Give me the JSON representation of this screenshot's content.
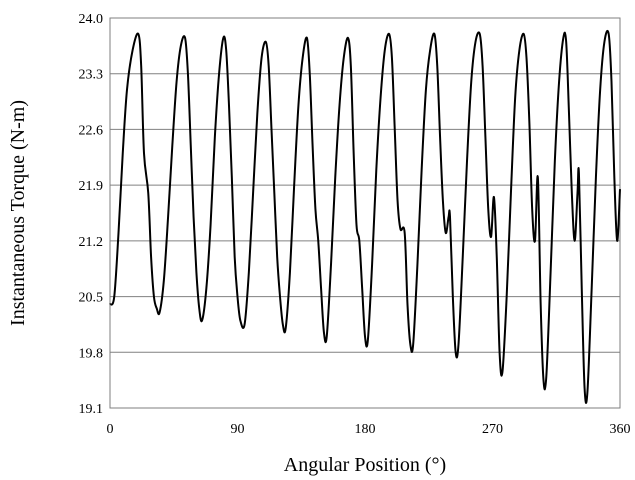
{
  "chart_data": {
    "type": "line",
    "title": "",
    "xlabel": "Angular Position (°)",
    "ylabel": "Instantaneous Torque (N-m)",
    "xlim": [
      0,
      360
    ],
    "ylim": [
      19.1,
      24.0
    ],
    "xticks": [
      0,
      90,
      180,
      270,
      360
    ],
    "yticks": [
      "19.1",
      "19.8",
      "20.5",
      "21.2",
      "21.9",
      "22.6",
      "23.3",
      "24.0"
    ],
    "grid": "horizontal",
    "legend": "none",
    "series": [
      {
        "color": "#000000",
        "points": [
          [
            0,
            20.4
          ],
          [
            3,
            20.5
          ],
          [
            6,
            21.3
          ],
          [
            9,
            22.3
          ],
          [
            12,
            23.1
          ],
          [
            16,
            23.6
          ],
          [
            20,
            23.8
          ],
          [
            22,
            23.4
          ],
          [
            24,
            22.3
          ],
          [
            27,
            21.8
          ],
          [
            29,
            21.0
          ],
          [
            31,
            20.5
          ],
          [
            33,
            20.35
          ],
          [
            35,
            20.3
          ],
          [
            38,
            20.7
          ],
          [
            41,
            21.5
          ],
          [
            44,
            22.4
          ],
          [
            47,
            23.2
          ],
          [
            50,
            23.65
          ],
          [
            53,
            23.75
          ],
          [
            55,
            23.3
          ],
          [
            57,
            22.4
          ],
          [
            59,
            21.5
          ],
          [
            61,
            20.8
          ],
          [
            63,
            20.35
          ],
          [
            65,
            20.2
          ],
          [
            68,
            20.6
          ],
          [
            71,
            21.4
          ],
          [
            74,
            22.5
          ],
          [
            77,
            23.3
          ],
          [
            80,
            23.75
          ],
          [
            82,
            23.6
          ],
          [
            84,
            22.9
          ],
          [
            86,
            22.0
          ],
          [
            88,
            21.0
          ],
          [
            90,
            20.5
          ],
          [
            92,
            20.2
          ],
          [
            95,
            20.15
          ],
          [
            98,
            20.8
          ],
          [
            101,
            21.8
          ],
          [
            104,
            22.8
          ],
          [
            107,
            23.5
          ],
          [
            110,
            23.7
          ],
          [
            112,
            23.4
          ],
          [
            114,
            22.6
          ],
          [
            116,
            21.8
          ],
          [
            118,
            21.0
          ],
          [
            120,
            20.5
          ],
          [
            122,
            20.15
          ],
          [
            124,
            20.1
          ],
          [
            127,
            20.8
          ],
          [
            130,
            21.9
          ],
          [
            133,
            22.9
          ],
          [
            136,
            23.5
          ],
          [
            139,
            23.75
          ],
          [
            141,
            23.3
          ],
          [
            143,
            22.4
          ],
          [
            145,
            21.6
          ],
          [
            147,
            21.2
          ],
          [
            149,
            20.6
          ],
          [
            151,
            20.05
          ],
          [
            153,
            20.0
          ],
          [
            156,
            20.9
          ],
          [
            159,
            22.0
          ],
          [
            162,
            22.9
          ],
          [
            165,
            23.5
          ],
          [
            168,
            23.75
          ],
          [
            170,
            23.4
          ],
          [
            172,
            22.3
          ],
          [
            174,
            21.4
          ],
          [
            176,
            21.2
          ],
          [
            178,
            20.6
          ],
          [
            180,
            20.0
          ],
          [
            182,
            19.95
          ],
          [
            185,
            20.9
          ],
          [
            188,
            22.1
          ],
          [
            191,
            23.0
          ],
          [
            194,
            23.6
          ],
          [
            197,
            23.8
          ],
          [
            199,
            23.5
          ],
          [
            201,
            22.6
          ],
          [
            203,
            21.7
          ],
          [
            205,
            21.35
          ],
          [
            208,
            21.3
          ],
          [
            210,
            20.4
          ],
          [
            212,
            19.9
          ],
          [
            214,
            19.9
          ],
          [
            217,
            20.9
          ],
          [
            220,
            22.1
          ],
          [
            223,
            23.1
          ],
          [
            226,
            23.6
          ],
          [
            229,
            23.8
          ],
          [
            231,
            23.4
          ],
          [
            233,
            22.5
          ],
          [
            235,
            21.7
          ],
          [
            237,
            21.3
          ],
          [
            239,
            21.5
          ],
          [
            240,
            21.5
          ],
          [
            242,
            20.5
          ],
          [
            244,
            19.8
          ],
          [
            246,
            19.9
          ],
          [
            249,
            21.0
          ],
          [
            252,
            22.2
          ],
          [
            255,
            23.2
          ],
          [
            258,
            23.7
          ],
          [
            261,
            23.8
          ],
          [
            263,
            23.4
          ],
          [
            265,
            22.5
          ],
          [
            267,
            21.6
          ],
          [
            269,
            21.25
          ],
          [
            271,
            21.75
          ],
          [
            273,
            21.0
          ],
          [
            275,
            19.8
          ],
          [
            277,
            19.55
          ],
          [
            280,
            20.5
          ],
          [
            283,
            21.8
          ],
          [
            286,
            23.0
          ],
          [
            289,
            23.6
          ],
          [
            292,
            23.8
          ],
          [
            294,
            23.5
          ],
          [
            296,
            22.7
          ],
          [
            298,
            21.6
          ],
          [
            300,
            21.2
          ],
          [
            302,
            22.0
          ],
          [
            304,
            20.4
          ],
          [
            306,
            19.45
          ],
          [
            308,
            19.5
          ],
          [
            311,
            20.8
          ],
          [
            314,
            22.2
          ],
          [
            317,
            23.2
          ],
          [
            320,
            23.75
          ],
          [
            322,
            23.7
          ],
          [
            324,
            22.8
          ],
          [
            326,
            21.8
          ],
          [
            328,
            21.2
          ],
          [
            330,
            21.8
          ],
          [
            331,
            22.05
          ],
          [
            333,
            20.6
          ],
          [
            335,
            19.35
          ],
          [
            337,
            19.3
          ],
          [
            340,
            20.6
          ],
          [
            343,
            22.0
          ],
          [
            346,
            23.1
          ],
          [
            349,
            23.7
          ],
          [
            352,
            23.8
          ],
          [
            354,
            23.2
          ],
          [
            356,
            22.0
          ],
          [
            358,
            21.2
          ],
          [
            360,
            21.85
          ]
        ]
      }
    ]
  }
}
